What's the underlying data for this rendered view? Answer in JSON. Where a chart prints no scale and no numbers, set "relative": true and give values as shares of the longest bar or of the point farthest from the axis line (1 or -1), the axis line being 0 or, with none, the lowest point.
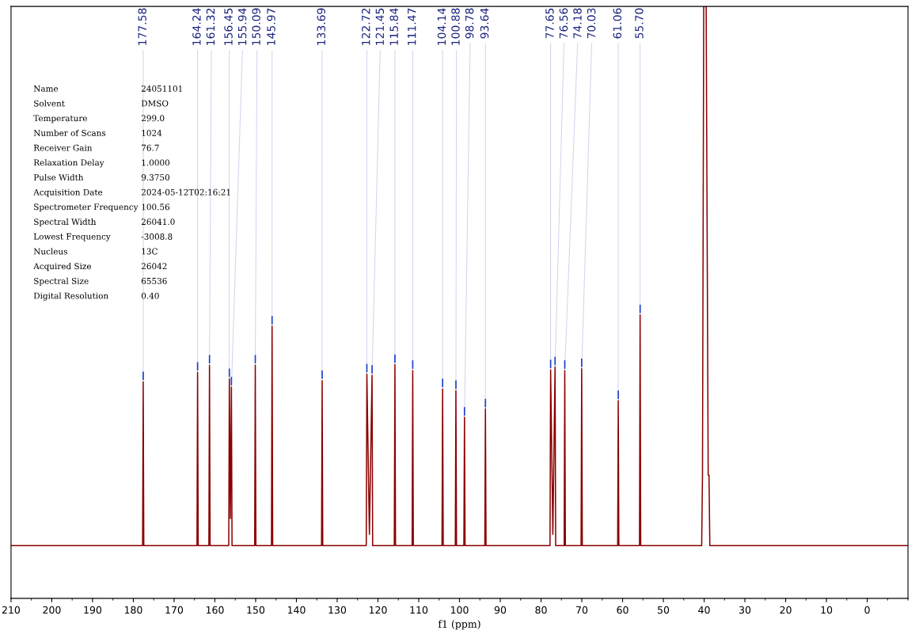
{
  "chart_data": {
    "type": "line",
    "relative": true,
    "xlabel": "f1 (ppm)",
    "xlim": [
      210,
      -10
    ],
    "xticks": [
      {
        "value": 210,
        "label": "210"
      },
      200,
      190,
      180,
      170,
      160,
      150,
      140,
      130,
      120,
      110,
      100,
      90,
      80,
      70,
      60,
      50,
      40,
      30,
      20,
      10,
      0
    ],
    "grid": false,
    "legend": false,
    "marker": "none",
    "line_style": "solid",
    "series": [
      {
        "color": "#8b0000",
        "x": [
          210,
          177.73,
          177.58,
          177.43,
          164.39,
          164.24,
          164.09,
          161.47,
          161.32,
          161.17,
          156.6,
          156.45,
          156.2,
          155.94,
          155.79,
          150.24,
          150.09,
          149.94,
          146.12,
          145.97,
          145.82,
          133.84,
          133.69,
          133.54,
          122.87,
          122.72,
          122.1,
          121.45,
          121.3,
          115.99,
          115.84,
          115.69,
          111.62,
          111.47,
          111.32,
          104.29,
          104.14,
          103.99,
          101.03,
          100.88,
          100.73,
          98.93,
          98.78,
          98.63,
          93.79,
          93.64,
          93.49,
          77.8,
          77.65,
          77.1,
          76.56,
          76.41,
          74.33,
          74.18,
          74.03,
          70.18,
          70.03,
          69.88,
          61.21,
          61.06,
          60.91,
          55.85,
          55.7,
          55.55,
          40.6,
          40.4,
          40.1,
          39.5,
          39.0,
          38.8,
          38.6,
          -10
        ],
        "values": [
          0.089,
          0.089,
          0.366,
          0.089,
          0.089,
          0.382,
          0.089,
          0.089,
          0.394,
          0.089,
          0.089,
          0.371,
          0.135,
          0.357,
          0.089,
          0.089,
          0.394,
          0.089,
          0.089,
          0.46,
          0.089,
          0.089,
          0.368,
          0.089,
          0.089,
          0.379,
          0.108,
          0.377,
          0.089,
          0.089,
          0.395,
          0.089,
          0.089,
          0.385,
          0.089,
          0.089,
          0.354,
          0.089,
          0.089,
          0.351,
          0.089,
          0.089,
          0.306,
          0.089,
          0.089,
          0.32,
          0.089,
          0.089,
          0.386,
          0.108,
          0.391,
          0.089,
          0.089,
          0.385,
          0.089,
          0.089,
          0.388,
          0.089,
          0.089,
          0.334,
          0.089,
          0.089,
          0.479,
          0.089,
          0.089,
          0.208,
          1.0,
          1.0,
          0.208,
          0.208,
          0.089,
          0.089
        ]
      }
    ],
    "annotations": [
      {
        "text": "177.58",
        "x": 177.58,
        "y": 0.366
      },
      {
        "text": "164.24",
        "x": 164.24,
        "y": 0.382
      },
      {
        "text": "161.32",
        "x": 161.32,
        "y": 0.394
      },
      {
        "text": "156.45",
        "x": 156.45,
        "y": 0.371
      },
      {
        "text": "155.94",
        "x": 155.94,
        "y": 0.357
      },
      {
        "text": "150.09",
        "x": 150.09,
        "y": 0.394
      },
      {
        "text": "145.97",
        "x": 145.97,
        "y": 0.46
      },
      {
        "text": "133.69",
        "x": 133.69,
        "y": 0.368
      },
      {
        "text": "122.72",
        "x": 122.72,
        "y": 0.379
      },
      {
        "text": "121.45",
        "x": 121.45,
        "y": 0.377
      },
      {
        "text": "115.84",
        "x": 115.84,
        "y": 0.395
      },
      {
        "text": "111.47",
        "x": 111.47,
        "y": 0.385
      },
      {
        "text": "104.14",
        "x": 104.14,
        "y": 0.354
      },
      {
        "text": "100.88",
        "x": 100.88,
        "y": 0.351
      },
      {
        "text": "98.78",
        "x": 98.78,
        "y": 0.306
      },
      {
        "text": "93.64",
        "x": 93.64,
        "y": 0.32
      },
      {
        "text": "77.65",
        "x": 77.65,
        "y": 0.386
      },
      {
        "text": "76.56",
        "x": 76.56,
        "y": 0.391
      },
      {
        "text": "74.18",
        "x": 74.18,
        "y": 0.385
      },
      {
        "text": "70.03",
        "x": 70.03,
        "y": 0.388
      },
      {
        "text": "61.06",
        "x": 61.06,
        "y": 0.334
      },
      {
        "text": "55.70",
        "x": 55.7,
        "y": 0.479
      },
      "Name",
      "24051101",
      "Solvent",
      "DMSO",
      "Temperature",
      "299.0",
      "Number of Scans",
      "1024",
      "Receiver Gain",
      "76.7",
      "Relaxation Delay",
      "1.0000",
      "Pulse Width",
      "9.3750",
      "Acquisition Date",
      "2024-05-12T02:16:21",
      "Spectrometer Frequency",
      "100.56",
      "Spectral Width",
      "26041.0",
      "Lowest Frequency",
      "-3008.8",
      "Nucleus",
      "13C",
      "Acquired Size",
      "26042",
      "Spectral Size",
      "65536",
      "Digital Resolution",
      "0.40"
    ]
  }
}
